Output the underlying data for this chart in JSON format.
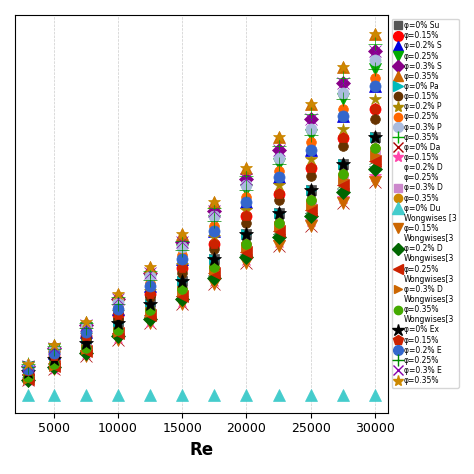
{
  "Re_values": [
    3000,
    5000,
    7500,
    10000,
    12500,
    15000,
    17500,
    20000,
    22500,
    25000,
    27500,
    30000
  ],
  "Re_ticks": [
    5000,
    10000,
    15000,
    20000,
    25000,
    30000
  ],
  "xlabel": "Re",
  "upper_series": [
    {
      "Nu": [
        20,
        28,
        38,
        50,
        62,
        76,
        90,
        105,
        118,
        132,
        148,
        165
      ],
      "marker": "s",
      "color": "#555555",
      "ms": 7
    },
    {
      "Nu": [
        21,
        30,
        42,
        55,
        68,
        84,
        99,
        116,
        130,
        146,
        164,
        182
      ],
      "marker": "o",
      "color": "#ff0000",
      "ms": 8
    },
    {
      "Nu": [
        22,
        32,
        45,
        59,
        73,
        90,
        107,
        125,
        140,
        157,
        178,
        196
      ],
      "marker": "^",
      "color": "#0000dd",
      "ms": 8
    },
    {
      "Nu": [
        23,
        34,
        47,
        62,
        77,
        95,
        113,
        132,
        148,
        166,
        188,
        207
      ],
      "marker": "v",
      "color": "#00aa00",
      "ms": 8
    },
    {
      "Nu": [
        24,
        35,
        49,
        65,
        81,
        100,
        119,
        139,
        157,
        176,
        198,
        218
      ],
      "marker": "D",
      "color": "#880088",
      "ms": 7
    },
    {
      "Nu": [
        25,
        37,
        51,
        68,
        85,
        105,
        125,
        146,
        165,
        185,
        208,
        228
      ],
      "marker": "^",
      "color": "#cc6600",
      "ms": 8
    }
  ],
  "upper_series2": [
    {
      "Nu": [
        20,
        28,
        38,
        50,
        62,
        76,
        90,
        105,
        118,
        132,
        148,
        165
      ],
      "marker": ">",
      "color": "#00bbbb",
      "ms": 7
    },
    {
      "Nu": [
        21,
        29,
        41,
        53,
        66,
        81,
        96,
        112,
        126,
        141,
        159,
        176
      ],
      "marker": "o",
      "color": "#663300",
      "ms": 7
    },
    {
      "Nu": [
        22,
        31,
        43,
        57,
        70,
        86,
        103,
        120,
        135,
        151,
        170,
        188
      ],
      "marker": "*",
      "color": "#aa8800",
      "ms": 9
    },
    {
      "Nu": [
        23,
        33,
        46,
        60,
        75,
        92,
        110,
        128,
        144,
        162,
        182,
        201
      ],
      "marker": "o",
      "color": "#ff6600",
      "ms": 7
    },
    {
      "Nu": [
        24,
        34,
        48,
        63,
        79,
        97,
        116,
        135,
        152,
        170,
        192,
        212
      ],
      "marker": "o",
      "color": "#aabbdd",
      "ms": 8
    },
    {
      "Nu": [
        25,
        36,
        50,
        66,
        82,
        101,
        121,
        141,
        159,
        179,
        201,
        222
      ],
      "marker": "+",
      "color": "#00aa00",
      "ms": 10
    }
  ],
  "lower_series": [
    {
      "Nu": [
        15,
        22,
        30,
        40,
        50,
        62,
        74,
        87,
        98,
        110,
        124,
        137
      ],
      "marker": "x",
      "color": "#aa0000",
      "ms": 8
    },
    {
      "Nu": [
        15,
        22,
        31,
        41,
        51,
        63,
        76,
        89,
        100,
        113,
        127,
        141
      ],
      "marker": "*",
      "color": "#ff44aa",
      "ms": 9
    },
    {
      "Nu": [
        15,
        23,
        32,
        42,
        53,
        65,
        78,
        91,
        103,
        116,
        131,
        145
      ],
      "marker": "1",
      "color": "#003388",
      "ms": 10
    },
    {
      "Nu": [
        16,
        24,
        33,
        44,
        55,
        67,
        81,
        94,
        107,
        120,
        135,
        150
      ],
      "marker": "2",
      "color": "#006600",
      "ms": 10
    },
    {
      "Nu": [
        16,
        24,
        34,
        45,
        57,
        70,
        83,
        97,
        110,
        123,
        139,
        154
      ],
      "marker": "s",
      "color": "#cc88cc",
      "ms": 7
    },
    {
      "Nu": [
        17,
        25,
        35,
        46,
        58,
        71,
        85,
        99,
        112,
        126,
        142,
        158
      ],
      "marker": "o",
      "color": "#cc8800",
      "ms": 7
    }
  ],
  "wongwises": [
    {
      "Nu": [
        15,
        22,
        30,
        40,
        50,
        62,
        74,
        87,
        98,
        110,
        124,
        137
      ],
      "marker": "v",
      "color": "#cc6600",
      "ms": 8
    },
    {
      "Nu": [
        15,
        23,
        32,
        42,
        53,
        65,
        78,
        91,
        103,
        116,
        131,
        145
      ],
      "marker": "D",
      "color": "#006600",
      "ms": 7
    },
    {
      "Nu": [
        16,
        24,
        33,
        44,
        55,
        67,
        81,
        94,
        107,
        120,
        135,
        150
      ],
      "marker": "<",
      "color": "#cc2200",
      "ms": 8
    },
    {
      "Nu": [
        16,
        24,
        34,
        45,
        57,
        70,
        83,
        97,
        110,
        123,
        139,
        154
      ],
      "marker": ">",
      "color": "#cc6600",
      "ms": 7
    },
    {
      "Nu": [
        17,
        25,
        35,
        46,
        58,
        71,
        85,
        99,
        112,
        126,
        142,
        158
      ],
      "marker": "o",
      "color": "#44aa00",
      "ms": 7
    }
  ],
  "exp_series": [
    {
      "Nu": [
        20,
        28,
        38,
        50,
        62,
        76,
        90,
        105,
        118,
        132,
        148,
        165
      ],
      "marker": "*",
      "color": "#000000",
      "ms": 10
    },
    {
      "Nu": [
        21,
        30,
        42,
        55,
        68,
        84,
        99,
        116,
        130,
        146,
        164,
        182
      ],
      "marker": "p",
      "color": "#cc2200",
      "ms": 8
    },
    {
      "Nu": [
        22,
        32,
        45,
        59,
        73,
        90,
        107,
        125,
        140,
        157,
        178,
        196
      ],
      "marker": "o",
      "color": "#3366cc",
      "ms": 8
    },
    {
      "Nu": [
        23,
        34,
        47,
        62,
        77,
        95,
        113,
        132,
        148,
        166,
        188,
        207
      ],
      "marker": "+",
      "color": "#008800",
      "ms": 10
    },
    {
      "Nu": [
        24,
        35,
        49,
        65,
        81,
        100,
        119,
        139,
        157,
        176,
        198,
        218
      ],
      "marker": "x",
      "color": "#8800aa",
      "ms": 8
    },
    {
      "Nu": [
        25,
        37,
        51,
        68,
        85,
        105,
        125,
        146,
        165,
        185,
        208,
        228
      ],
      "marker": "*",
      "color": "#cc8800",
      "ms": 9
    }
  ],
  "teal_Nu": [
    6,
    6,
    6,
    6,
    6,
    6,
    6,
    6,
    6,
    6,
    6,
    6
  ],
  "legend_entries": [
    {
      "marker": "s",
      "color": "#555555",
      "ms": 6,
      "label": "φ=0% Su"
    },
    {
      "marker": "o",
      "color": "#ff0000",
      "ms": 7,
      "label": "φ=0.15%"
    },
    {
      "marker": "^",
      "color": "#0000dd",
      "ms": 7,
      "label": "φ=0.2% S"
    },
    {
      "marker": "v",
      "color": "#00aa00",
      "ms": 7,
      "label": "φ=0.25%"
    },
    {
      "marker": "D",
      "color": "#880088",
      "ms": 6,
      "label": "φ=0.3% S"
    },
    {
      "marker": "^",
      "color": "#cc6600",
      "ms": 7,
      "label": "φ=0.35%"
    },
    {
      "marker": ">",
      "color": "#00bbbb",
      "ms": 7,
      "label": "φ=0% Pa"
    },
    {
      "marker": "o",
      "color": "#663300",
      "ms": 6,
      "label": "φ=0.15%"
    },
    {
      "marker": "*",
      "color": "#aa8800",
      "ms": 8,
      "label": "φ=0.2% P"
    },
    {
      "marker": "o",
      "color": "#ff6600",
      "ms": 6,
      "label": "φ=0.25%"
    },
    {
      "marker": "o",
      "color": "#aabbdd",
      "ms": 7,
      "label": "φ=0.3% P"
    },
    {
      "marker": "+",
      "color": "#00aa00",
      "ms": 8,
      "label": "φ=0.35%"
    },
    {
      "marker": "x",
      "color": "#aa0000",
      "ms": 7,
      "label": "φ=0% Da"
    },
    {
      "marker": "*",
      "color": "#ff44aa",
      "ms": 8,
      "label": "φ=0.15%"
    },
    {
      "marker": "none",
      "color": "#003388",
      "ms": 8,
      "label": "φ=0.2% D"
    },
    {
      "marker": "none",
      "color": "#006600",
      "ms": 8,
      "label": "φ=0.25%"
    },
    {
      "marker": "s",
      "color": "#cc88cc",
      "ms": 6,
      "label": "φ=0.3% D"
    },
    {
      "marker": "o",
      "color": "#cc8800",
      "ms": 6,
      "label": "φ=0.35%"
    },
    {
      "marker": "^",
      "color": "#44cccc",
      "ms": 8,
      "label": "φ=0% Du"
    },
    {
      "marker": "none",
      "color": "#ffffff",
      "ms": 0,
      "label": "Wongwises [3"
    },
    {
      "marker": "v",
      "color": "#cc6600",
      "ms": 7,
      "label": "φ=0.15%"
    },
    {
      "marker": "none",
      "color": "#ffffff",
      "ms": 0,
      "label": "Wongwises[3"
    },
    {
      "marker": "D",
      "color": "#006600",
      "ms": 6,
      "label": "φ=0.2% D"
    },
    {
      "marker": "none",
      "color": "#ffffff",
      "ms": 0,
      "label": "Wongwises[3"
    },
    {
      "marker": "<",
      "color": "#cc2200",
      "ms": 7,
      "label": "φ=0.25%"
    },
    {
      "marker": "none",
      "color": "#ffffff",
      "ms": 0,
      "label": "Wongwises[3"
    },
    {
      "marker": ">",
      "color": "#cc6600",
      "ms": 6,
      "label": "φ=0.3% D"
    },
    {
      "marker": "none",
      "color": "#ffffff",
      "ms": 0,
      "label": "Wongwises[3"
    },
    {
      "marker": "o",
      "color": "#44aa00",
      "ms": 6,
      "label": "φ=0.35%"
    },
    {
      "marker": "none",
      "color": "#ffffff",
      "ms": 0,
      "label": "Wongwises[3"
    },
    {
      "marker": "*",
      "color": "#000000",
      "ms": 9,
      "label": "φ=0% Ex"
    },
    {
      "marker": "p",
      "color": "#cc2200",
      "ms": 7,
      "label": "φ=0.15%"
    },
    {
      "marker": "o",
      "color": "#3366cc",
      "ms": 7,
      "label": "φ=0.2% E"
    },
    {
      "marker": "+",
      "color": "#008800",
      "ms": 8,
      "label": "φ=0.25%"
    },
    {
      "marker": "x",
      "color": "#8800aa",
      "ms": 7,
      "label": "φ=0.3% E"
    },
    {
      "marker": "*",
      "color": "#cc8800",
      "ms": 8,
      "label": "φ=0.35%"
    }
  ]
}
